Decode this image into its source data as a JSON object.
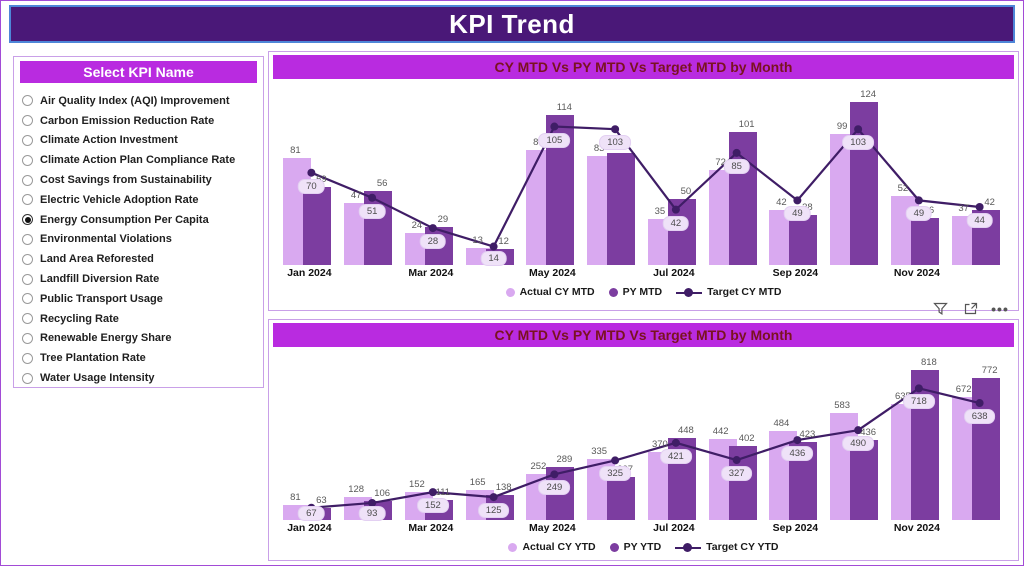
{
  "page": {
    "title": "KPI Trend"
  },
  "slicer": {
    "title": "Select KPI Name",
    "items": [
      {
        "label": "Air Quality Index (AQI) Improvement",
        "selected": false
      },
      {
        "label": "Carbon Emission Reduction Rate",
        "selected": false
      },
      {
        "label": "Climate Action Investment",
        "selected": false
      },
      {
        "label": "Climate Action Plan Compliance Rate",
        "selected": false
      },
      {
        "label": "Cost Savings from Sustainability",
        "selected": false
      },
      {
        "label": "Electric Vehicle Adoption Rate",
        "selected": false
      },
      {
        "label": "Energy Consumption Per Capita",
        "selected": true
      },
      {
        "label": "Environmental Violations",
        "selected": false
      },
      {
        "label": "Land Area Reforested",
        "selected": false
      },
      {
        "label": "Landfill Diversion Rate",
        "selected": false
      },
      {
        "label": "Public Transport Usage",
        "selected": false
      },
      {
        "label": "Recycling Rate",
        "selected": false
      },
      {
        "label": "Renewable Energy Share",
        "selected": false
      },
      {
        "label": "Tree Plantation Rate",
        "selected": false
      },
      {
        "label": "Water Usage Intensity",
        "selected": false
      }
    ]
  },
  "visual_toolbar": {
    "icons": [
      "filter-icon",
      "focus-mode-icon",
      "more-options-icon"
    ],
    "more_glyph": "•••"
  },
  "colors": {
    "banner_bg": "#4a1878",
    "banner_border": "#4e86d8",
    "accent_purple": "#b92be0",
    "chart_title_text": "#7a1220",
    "bar_actual": "#d9a9f0",
    "bar_py": "#7c3da0",
    "target_line": "#3f1d66",
    "label_gray": "#595959",
    "target_label_bg": "#efe2f8",
    "panel_border": "#c9a0e8"
  },
  "chart_data": [
    {
      "type": "bar",
      "subtype": "combo-bar-line",
      "title": "CY MTD Vs PY MTD Vs Target MTD by Month",
      "categories": [
        "Jan 2024",
        "Feb 2024",
        "Mar 2024",
        "Apr 2024",
        "May 2024",
        "Jun 2024",
        "Jul 2024",
        "Aug 2024",
        "Sep 2024",
        "Oct 2024",
        "Nov 2024",
        "Dec 2024"
      ],
      "x_ticks": [
        "Jan 2024",
        "Mar 2024",
        "May 2024",
        "Jul 2024",
        "Sep 2024",
        "Nov 2024"
      ],
      "series": [
        {
          "name": "Actual CY MTD",
          "type": "bar",
          "color": "#d9a9f0",
          "values": [
            81,
            47,
            24,
            13,
            87,
            83,
            35,
            72,
            42,
            99,
            52,
            37
          ]
        },
        {
          "name": "PY MTD",
          "type": "bar",
          "color": "#7c3da0",
          "values": [
            59,
            56,
            29,
            12,
            114,
            85,
            50,
            101,
            38,
            124,
            36,
            42
          ]
        },
        {
          "name": "Target CY MTD",
          "type": "line",
          "color": "#3f1d66",
          "values": [
            70,
            51,
            28,
            14,
            105,
            103,
            42,
            85,
            49,
            103,
            49,
            44
          ]
        }
      ],
      "ylim": [
        0,
        135
      ],
      "grid": false,
      "legend_position": "bottom"
    },
    {
      "type": "bar",
      "subtype": "combo-bar-line",
      "title": "CY MTD Vs PY MTD Vs Target MTD by Month",
      "categories": [
        "Jan 2024",
        "Feb 2024",
        "Mar 2024",
        "Apr 2024",
        "May 2024",
        "Jun 2024",
        "Jul 2024",
        "Aug 2024",
        "Sep 2024",
        "Oct 2024",
        "Nov 2024",
        "Dec 2024"
      ],
      "x_ticks": [
        "Jan 2024",
        "Mar 2024",
        "May 2024",
        "Jul 2024",
        "Sep 2024",
        "Nov 2024"
      ],
      "series": [
        {
          "name": "Actual CY YTD",
          "type": "bar",
          "color": "#d9a9f0",
          "values": [
            81,
            128,
            152,
            165,
            252,
            335,
            370,
            442,
            484,
            583,
            635,
            672
          ]
        },
        {
          "name": "PY YTD",
          "type": "bar",
          "color": "#7c3da0",
          "values": [
            63,
            106,
            111,
            138,
            289,
            237,
            448,
            402,
            423,
            436,
            818,
            772
          ]
        },
        {
          "name": "Target CY YTD",
          "type": "line",
          "color": "#3f1d66",
          "values": [
            67,
            93,
            152,
            125,
            249,
            325,
            421,
            327,
            436,
            490,
            718,
            638
          ]
        }
      ],
      "ylim": [
        0,
        900
      ],
      "grid": false,
      "legend_position": "bottom"
    }
  ]
}
